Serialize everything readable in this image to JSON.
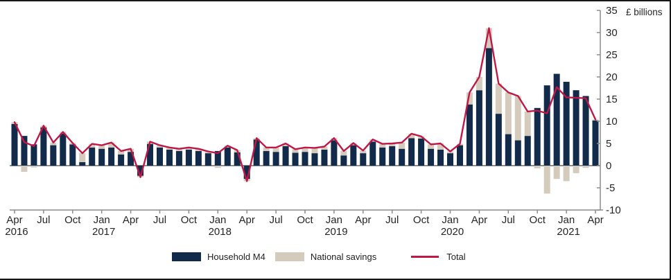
{
  "page": {
    "background": "#ffffff",
    "frame_border_color": "#161616"
  },
  "chart_data": {
    "type": "bar",
    "stacked": true,
    "overlay": "line",
    "title": "",
    "unit_label": "£ billions",
    "grid": false,
    "legend_position": "bottom",
    "axis_color": "#8c8c8c",
    "text_color": "#262626",
    "ylim": [
      -10,
      35
    ],
    "ytick_step": 5,
    "ytick_labels": [
      "-10",
      "-5",
      "0",
      "5",
      "10",
      "15",
      "20",
      "25",
      "30",
      "35"
    ],
    "months": [
      "Apr 2016",
      "May 2016",
      "Jun 2016",
      "Jul 2016",
      "Aug 2016",
      "Sep 2016",
      "Oct 2016",
      "Nov 2016",
      "Dec 2016",
      "Jan 2017",
      "Feb 2017",
      "Mar 2017",
      "Apr 2017",
      "May 2017",
      "Jun 2017",
      "Jul 2017",
      "Aug 2017",
      "Sep 2017",
      "Oct 2017",
      "Nov 2017",
      "Dec 2017",
      "Jan 2018",
      "Feb 2018",
      "Mar 2018",
      "Apr 2018",
      "May 2018",
      "Jun 2018",
      "Jul 2018",
      "Aug 2018",
      "Sep 2018",
      "Oct 2018",
      "Nov 2018",
      "Dec 2018",
      "Jan 2019",
      "Feb 2019",
      "Mar 2019",
      "Apr 2019",
      "May 2019",
      "Jun 2019",
      "Jul 2019",
      "Aug 2019",
      "Sep 2019",
      "Oct 2019",
      "Nov 2019",
      "Dec 2019",
      "Jan 2020",
      "Feb 2020",
      "Mar 2020",
      "Apr 2020",
      "May 2020",
      "Jun 2020",
      "Jul 2020",
      "Aug 2020",
      "Sep 2020",
      "Oct 2020",
      "Nov 2020",
      "Dec 2020",
      "Jan 2021",
      "Feb 2021",
      "Mar 2021",
      "Apr 2021"
    ],
    "series": [
      {
        "name": "Household M4",
        "color": "#132b4a",
        "values": [
          9.4,
          6.7,
          4.8,
          8.6,
          4.6,
          7.2,
          4.8,
          0.8,
          4.1,
          3.8,
          4.1,
          2.5,
          3.1,
          -2.3,
          4.9,
          4.1,
          3.6,
          3.3,
          3.6,
          3.3,
          2.8,
          3.3,
          4.1,
          3.0,
          -3.0,
          5.9,
          3.3,
          3.1,
          4.4,
          2.9,
          3.1,
          2.8,
          3.6,
          5.7,
          2.3,
          4.6,
          2.8,
          5.4,
          4.1,
          4.4,
          3.8,
          6.2,
          6.1,
          3.8,
          3.6,
          2.8,
          4.6,
          13.8,
          17.0,
          26.5,
          11.7,
          7.1,
          5.7,
          6.7,
          13.0,
          18.1,
          20.7,
          18.9,
          17.0,
          15.7,
          10.2
        ]
      },
      {
        "name": "National savings",
        "color": "#d5cbbd",
        "values": [
          0.4,
          -1.4,
          -0.4,
          0.4,
          0.6,
          0.4,
          0.3,
          2.0,
          0.8,
          0.8,
          1.1,
          0.8,
          0.7,
          -0.3,
          0.5,
          0.5,
          0.5,
          0.5,
          0.5,
          0.5,
          0.4,
          -0.5,
          0.4,
          0.5,
          -0.5,
          0.3,
          0.8,
          1.0,
          0.6,
          0.8,
          1.0,
          1.2,
          0.7,
          0.5,
          1.0,
          0.5,
          0.6,
          0.5,
          0.8,
          0.6,
          1.4,
          1.0,
          0.5,
          1.0,
          1.4,
          0.4,
          0.3,
          2.7,
          3.0,
          4.5,
          6.8,
          9.4,
          10.0,
          5.5,
          -0.6,
          -6.3,
          -3.0,
          -3.5,
          -1.7,
          -0.5,
          0.2
        ]
      }
    ],
    "line_series": {
      "name": "Total",
      "color": "#c01747",
      "values": [
        9.8,
        5.3,
        4.4,
        9.0,
        5.2,
        7.6,
        5.1,
        2.8,
        4.9,
        4.6,
        5.2,
        3.3,
        3.8,
        -2.6,
        5.4,
        4.6,
        4.1,
        3.8,
        4.1,
        3.8,
        3.2,
        2.8,
        4.5,
        3.5,
        -3.5,
        6.2,
        4.1,
        4.1,
        5.0,
        3.7,
        4.1,
        4.0,
        4.3,
        6.2,
        3.3,
        5.1,
        3.4,
        5.9,
        4.9,
        5.0,
        5.2,
        7.2,
        6.6,
        4.8,
        5.0,
        3.2,
        4.9,
        16.5,
        20.0,
        31.0,
        18.5,
        16.5,
        15.7,
        12.2,
        12.4,
        11.8,
        17.7,
        15.4,
        15.3,
        15.2,
        10.4
      ]
    },
    "xticks": [
      {
        "i": 0,
        "m": "Apr",
        "y": "2016"
      },
      {
        "i": 3,
        "m": "Jul"
      },
      {
        "i": 6,
        "m": "Oct"
      },
      {
        "i": 9,
        "m": "Jan",
        "y": "2017"
      },
      {
        "i": 12,
        "m": "Apr"
      },
      {
        "i": 15,
        "m": "Jul"
      },
      {
        "i": 18,
        "m": "Oct"
      },
      {
        "i": 21,
        "m": "Jan",
        "y": "2018"
      },
      {
        "i": 24,
        "m": "Apr"
      },
      {
        "i": 27,
        "m": "Jul"
      },
      {
        "i": 30,
        "m": "Oct"
      },
      {
        "i": 33,
        "m": "Jan",
        "y": "2019"
      },
      {
        "i": 36,
        "m": "Apr"
      },
      {
        "i": 39,
        "m": "Jul"
      },
      {
        "i": 42,
        "m": "Oct"
      },
      {
        "i": 45,
        "m": "Jan",
        "y": "2020"
      },
      {
        "i": 48,
        "m": "Apr"
      },
      {
        "i": 51,
        "m": "Jul"
      },
      {
        "i": 54,
        "m": "Oct"
      },
      {
        "i": 57,
        "m": "Jan",
        "y": "2021"
      },
      {
        "i": 60,
        "m": "Apr"
      }
    ]
  }
}
